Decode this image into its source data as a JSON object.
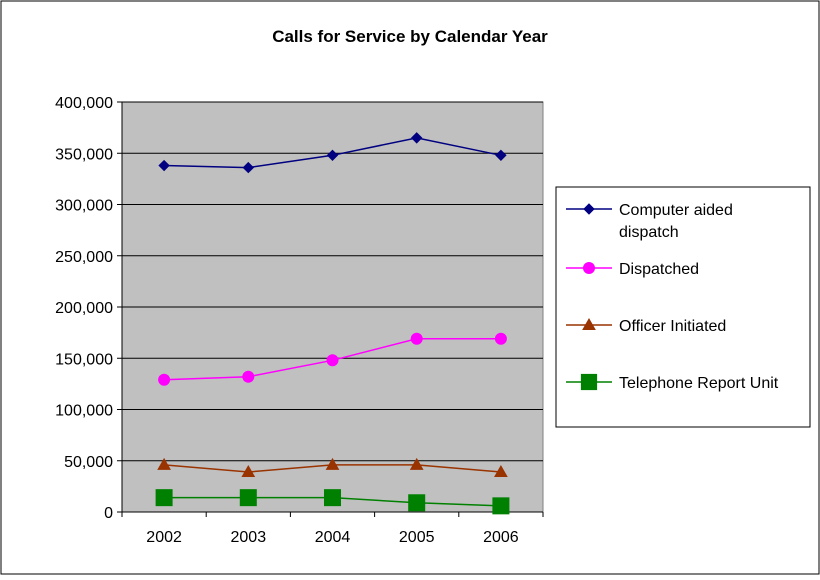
{
  "chart_data": {
    "type": "line",
    "title": "Calls for Service by Calendar Year",
    "xlabel": "",
    "ylabel": "",
    "categories": [
      "2002",
      "2003",
      "2004",
      "2005",
      "2006"
    ],
    "ylim": [
      0,
      400000
    ],
    "yticks": [
      0,
      50000,
      100000,
      150000,
      200000,
      250000,
      300000,
      350000,
      400000
    ],
    "ytick_labels": [
      "0",
      "50,000",
      "100,000",
      "150,000",
      "200,000",
      "250,000",
      "300,000",
      "350,000",
      "400,000"
    ],
    "grid": true,
    "plot_background": "#c0c0c0",
    "legend_position": "right",
    "series": [
      {
        "name": "Computer aided dispatch",
        "legend_lines": [
          "Computer aided",
          "dispatch"
        ],
        "color": "#000080",
        "marker": "diamond",
        "values": [
          338000,
          336000,
          348000,
          365000,
          348000
        ]
      },
      {
        "name": "Dispatched",
        "legend_lines": [
          "Dispatched"
        ],
        "color": "#ff00ff",
        "marker": "circle",
        "values": [
          129000,
          132000,
          148000,
          169000,
          169000
        ]
      },
      {
        "name": "Officer Initiated",
        "legend_lines": [
          "Officer Initiated"
        ],
        "color": "#993300",
        "marker": "triangle",
        "values": [
          46000,
          39000,
          46000,
          46000,
          39000
        ]
      },
      {
        "name": "Telephone Report Unit",
        "legend_lines": [
          "Telephone Report Unit"
        ],
        "color": "#008000",
        "marker": "square",
        "values": [
          14000,
          14000,
          14000,
          9000,
          6000
        ]
      }
    ]
  }
}
